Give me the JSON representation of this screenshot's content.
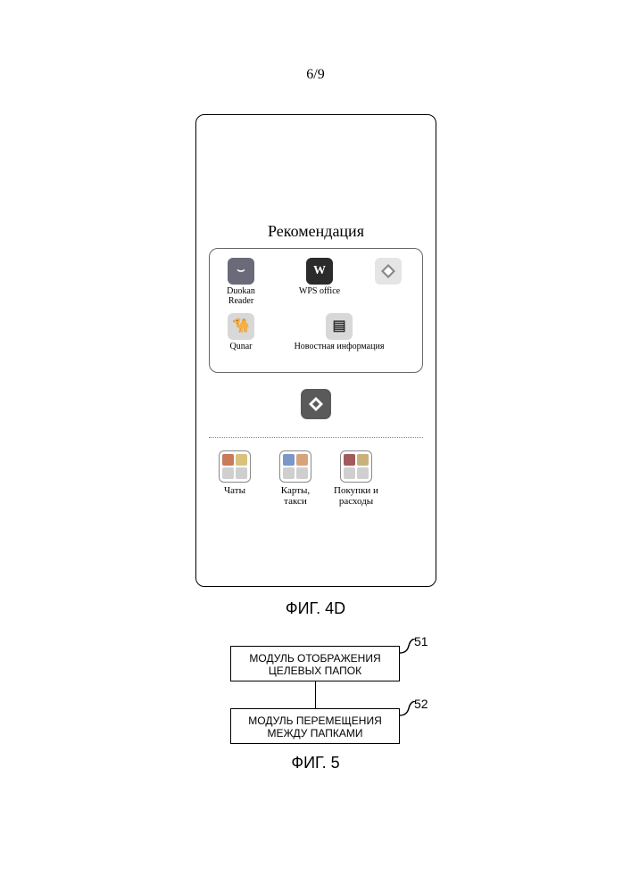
{
  "page_number": "6/9",
  "fig4d": {
    "caption": "ФИГ. 4D",
    "recommendation_title": "Рекомендация",
    "apps": {
      "duokan": {
        "label": "Duokan\nReader",
        "icon_bg": "#6a6a78",
        "glyph": "⌣"
      },
      "wps": {
        "label": "WPS  office",
        "icon_bg": "#2b2b2b",
        "glyph": "W"
      },
      "blank": {
        "label": "",
        "icon_bg": "#e5e5e5",
        "glyph": ""
      },
      "qunar": {
        "label": "Qunar",
        "icon_bg": "#d8d8d8",
        "glyph": "🐪"
      },
      "news": {
        "label": "Новостная информация",
        "icon_bg": "#d8d8d8",
        "glyph": "▤"
      }
    },
    "drag_icon_bg": "#5a5a5a",
    "folders": [
      {
        "label": "Чаты",
        "minis": [
          "#c97a5a",
          "#d9c37a",
          "#cfcfcf",
          "#cfcfcf"
        ]
      },
      {
        "label": "Карты,\nтакси",
        "minis": [
          "#7a97c9",
          "#d9a37a",
          "#cfcfcf",
          "#cfcfcf"
        ]
      },
      {
        "label": "Покупки и\nрасходы",
        "minis": [
          "#a35a5a",
          "#c9b27a",
          "#cfcfcf",
          "#cfcfcf"
        ]
      }
    ]
  },
  "fig5": {
    "caption": "ФИГ. 5",
    "block51": {
      "text": "МОДУЛЬ ОТОБРАЖЕНИЯ\nЦЕЛЕВЫХ ПАПОК",
      "ref": "51"
    },
    "block52": {
      "text": "МОДУЛЬ ПЕРЕМЕЩЕНИЯ\nМЕЖДУ ПАПКАМИ",
      "ref": "52"
    }
  },
  "colors": {
    "stroke": "#000000",
    "divider": "#888888",
    "icon_border": "#888888"
  }
}
